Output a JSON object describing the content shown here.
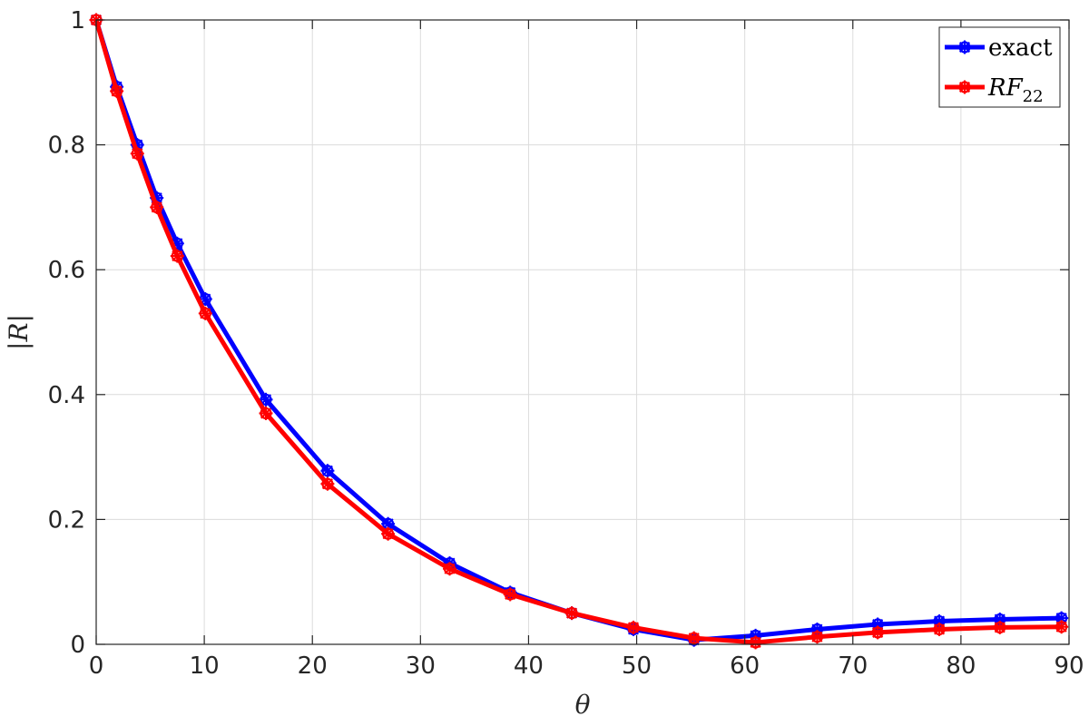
{
  "chart_data": {
    "type": "line",
    "xlabel": "θ",
    "ylabel": "|R|",
    "xlim": [
      0,
      90
    ],
    "ylim": [
      0,
      1
    ],
    "xticks": [
      0,
      10,
      20,
      30,
      40,
      50,
      60,
      70,
      80,
      90
    ],
    "yticks": [
      0,
      0.2,
      0.4,
      0.6,
      0.8,
      1
    ],
    "ytick_labels": [
      "0",
      "0.2",
      "0.4",
      "0.6",
      "0.8",
      "1"
    ],
    "grid": true,
    "legend_position": "top-right",
    "x": [
      0,
      1.9,
      3.8,
      5.6,
      7.5,
      10.1,
      15.7,
      21.4,
      27.0,
      32.7,
      38.3,
      44.0,
      49.7,
      55.3,
      61.0,
      66.7,
      72.3,
      78.0,
      83.6,
      89.3
    ],
    "series": [
      {
        "name": "exact",
        "color": "#0000ff",
        "marker": "star-circle",
        "values": [
          1.0,
          0.893,
          0.8,
          0.715,
          0.642,
          0.553,
          0.392,
          0.278,
          0.193,
          0.13,
          0.083,
          0.05,
          0.024,
          0.007,
          0.014,
          0.024,
          0.032,
          0.037,
          0.04,
          0.042
        ]
      },
      {
        "name": "RF",
        "name_subscript": "22",
        "color": "#ff0000",
        "marker": "star-circle",
        "values": [
          1.0,
          0.886,
          0.786,
          0.7,
          0.622,
          0.53,
          0.37,
          0.257,
          0.177,
          0.121,
          0.08,
          0.05,
          0.027,
          0.01,
          0.003,
          0.012,
          0.019,
          0.024,
          0.027,
          0.028
        ]
      }
    ]
  }
}
